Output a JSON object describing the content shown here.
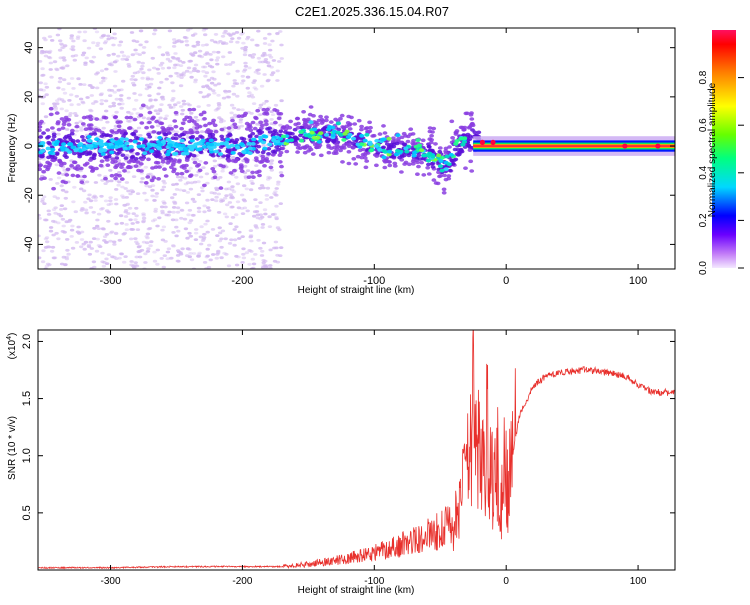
{
  "title": "C2E1.2025.336.15.04.R07",
  "colors": {
    "background": "#ffffff",
    "axis": "#000000",
    "snr_line": "#e8302c",
    "scatter_dim": "#d2b8f0",
    "scatter_mid": "#8a3de0",
    "scatter_strong": "#5a10d8",
    "band_core": "#ff2040"
  },
  "chart_data": [
    {
      "type": "heatmap",
      "title": "C2E1.2025.336.15.04.R07",
      "xlabel": "Height of straight line (km)",
      "ylabel": "Frequency (Hz)",
      "xlim": [
        -355,
        128
      ],
      "ylim": [
        -50,
        48
      ],
      "xticks": [
        -300,
        -200,
        -100,
        0,
        100
      ],
      "yticks": [
        -40,
        -20,
        0,
        20,
        40
      ],
      "ridge": {
        "x": [
          -355,
          -300,
          -250,
          -200,
          -170,
          -150,
          -120,
          -100,
          -80,
          -60,
          -45,
          -35,
          -28,
          -20,
          -10,
          0,
          20,
          60,
          100,
          128
        ],
        "y": [
          0,
          0,
          0,
          0,
          3,
          5,
          4,
          0,
          -2,
          -3,
          -8,
          1,
          3,
          2,
          1,
          0,
          0,
          0,
          0,
          0
        ]
      },
      "colorbar": {
        "label": "Normalized spectral amplitude",
        "range": [
          0.0,
          1.0
        ],
        "ticks": [
          "0.0",
          "0.2",
          "0.4",
          "0.6",
          "0.8"
        ]
      }
    },
    {
      "type": "line",
      "xlabel": "Height of straight line (km)",
      "ylabel": "SNR (10 * v/v)",
      "exponent_label": "(x10",
      "exponent_power": "4",
      "exponent_close": ")",
      "xlim": [
        -355,
        128
      ],
      "ylim": [
        0,
        2.1
      ],
      "xticks": [
        -300,
        -200,
        -100,
        0,
        100
      ],
      "yticks": [
        0.5,
        1.0,
        1.5,
        2.0
      ],
      "ytick_labels": [
        "0.5",
        "1.0",
        "1.5",
        "2.0"
      ],
      "series": [
        {
          "name": "SNR",
          "x": [
            -355,
            -300,
            -250,
            -200,
            -170,
            -150,
            -120,
            -100,
            -80,
            -60,
            -40,
            -30,
            -25,
            -20,
            -15,
            -10,
            -5,
            0,
            5,
            10,
            20,
            30,
            40,
            50,
            60,
            70,
            80,
            90,
            100,
            110,
            128
          ],
          "y": [
            0.02,
            0.02,
            0.03,
            0.03,
            0.03,
            0.05,
            0.1,
            0.15,
            0.22,
            0.3,
            0.4,
            0.75,
            1.4,
            0.9,
            1.2,
            0.8,
            0.6,
            0.7,
            1.0,
            1.35,
            1.6,
            1.7,
            1.72,
            1.74,
            1.75,
            1.74,
            1.72,
            1.7,
            1.62,
            1.56,
            1.55
          ]
        }
      ]
    }
  ]
}
